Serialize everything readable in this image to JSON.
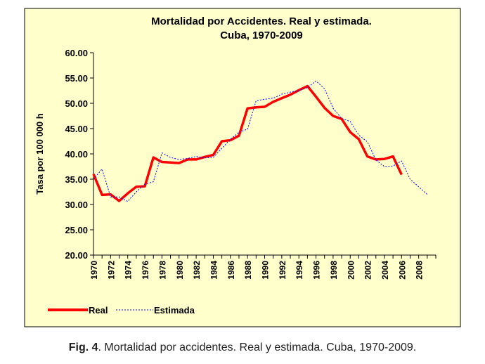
{
  "chart_data": {
    "type": "line",
    "title": "Mortalidad por Accidentes. Real y estimada.",
    "subtitle": "Cuba, 1970-2009",
    "ylabel": "Tasa por 100 000 h",
    "xlabel": "",
    "ylim": [
      20,
      60
    ],
    "yticks": [
      "20.00",
      "25.00",
      "30.00",
      "35.00",
      "40.00",
      "45.00",
      "50.00",
      "55.00",
      "60.00"
    ],
    "xlim": [
      1970,
      2009
    ],
    "xticks": [
      "1970",
      "1972",
      "1974",
      "1976",
      "1978",
      "1980",
      "1982",
      "1984",
      "1986",
      "1988",
      "1990",
      "1992",
      "1994",
      "1996",
      "1998",
      "2000",
      "2002",
      "2004",
      "2006",
      "2008"
    ],
    "grid": false,
    "legend": "bottom-left",
    "series": [
      {
        "name": "Real",
        "color": "#ff0000",
        "style": "solid",
        "x": [
          1970,
          1971,
          1972,
          1973,
          1974,
          1975,
          1976,
          1977,
          1978,
          1979,
          1980,
          1981,
          1982,
          1983,
          1984,
          1985,
          1986,
          1987,
          1988,
          1989,
          1990,
          1991,
          1992,
          1993,
          1994,
          1995,
          1996,
          1997,
          1998,
          1999,
          2000,
          2001,
          2002,
          2003,
          2004,
          2005,
          2006
        ],
        "values": [
          36.0,
          31.9,
          32.0,
          30.7,
          32.2,
          33.5,
          33.6,
          39.3,
          38.4,
          38.3,
          38.2,
          38.9,
          38.9,
          39.4,
          39.8,
          42.5,
          42.7,
          43.6,
          49.0,
          49.2,
          49.3,
          50.3,
          51.0,
          51.7,
          52.6,
          53.4,
          51.3,
          49.1,
          47.5,
          46.9,
          44.3,
          42.9,
          39.5,
          38.9,
          39.0,
          39.5,
          35.9
        ]
      },
      {
        "name": "Estimada",
        "color": "#0000ff",
        "style": "dotted",
        "x": [
          1970,
          1971,
          1972,
          1973,
          1974,
          1975,
          1976,
          1977,
          1978,
          1979,
          1980,
          1981,
          1982,
          1983,
          1984,
          1985,
          1986,
          1987,
          1988,
          1989,
          1990,
          1991,
          1992,
          1993,
          1994,
          1995,
          1996,
          1997,
          1998,
          1999,
          2000,
          2001,
          2002,
          2003,
          2004,
          2005,
          2006,
          2007,
          2008,
          2009
        ],
        "values": [
          35.0,
          37.0,
          31.5,
          31.5,
          30.6,
          32.5,
          34.0,
          34.5,
          40.2,
          39.3,
          38.9,
          39.1,
          39.5,
          39.2,
          39.3,
          41.1,
          42.9,
          44.3,
          44.9,
          50.5,
          50.8,
          51.0,
          51.8,
          52.2,
          52.5,
          53.1,
          54.4,
          52.9,
          49.0,
          47.0,
          46.4,
          43.7,
          42.4,
          38.8,
          37.5,
          37.6,
          38.6,
          35.0,
          33.5,
          32.0
        ]
      }
    ]
  },
  "caption": {
    "label": "Fig. 4",
    "text": ". Mortalidad por accidentes. Real y estimada. Cuba, 1970-2009."
  }
}
